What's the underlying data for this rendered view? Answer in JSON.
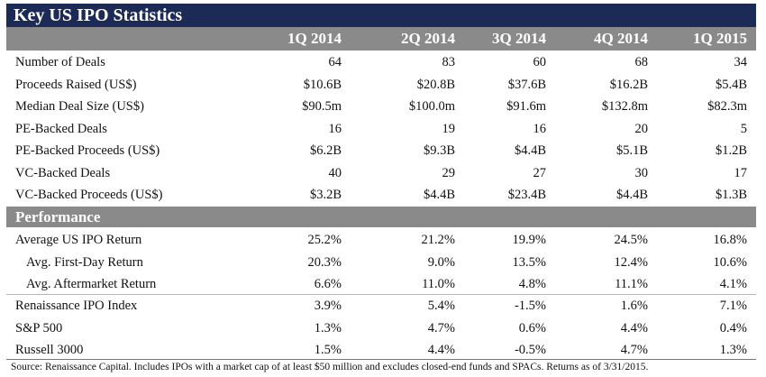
{
  "title": "Key US IPO Statistics",
  "columns": [
    "1Q 2014",
    "2Q 2014",
    "3Q 2014",
    "4Q 2014",
    "1Q 2015"
  ],
  "deal_rows": [
    {
      "label": "Number of Deals",
      "values": [
        "64",
        "83",
        "60",
        "68",
        "34"
      ]
    },
    {
      "label": "Proceeds Raised (US$)",
      "values": [
        "$10.6B",
        "$20.8B",
        "$37.6B",
        "$16.2B",
        "$5.4B"
      ]
    },
    {
      "label": "Median Deal Size (US$)",
      "values": [
        "$90.5m",
        "$100.0m",
        "$91.6m",
        "$132.8m",
        "$82.3m"
      ]
    },
    {
      "label": "PE-Backed Deals",
      "values": [
        "16",
        "19",
        "16",
        "20",
        "5"
      ]
    },
    {
      "label": "PE-Backed Proceeds (US$)",
      "values": [
        "$6.2B",
        "$9.3B",
        "$4.4B",
        "$5.1B",
        "$1.2B"
      ]
    },
    {
      "label": "VC-Backed Deals",
      "values": [
        "40",
        "29",
        "27",
        "30",
        "17"
      ]
    },
    {
      "label": "VC-Backed Proceeds (US$)",
      "values": [
        "$3.2B",
        "$4.4B",
        "$23.4B",
        "$4.4B",
        "$1.3B"
      ]
    }
  ],
  "performance_title": "Performance",
  "perf_rows": [
    {
      "label": "Average US IPO Return",
      "values": [
        "25.2%",
        "21.2%",
        "19.9%",
        "24.5%",
        "16.8%"
      ]
    },
    {
      "label": "Avg. First-Day Return",
      "values": [
        "20.3%",
        "9.0%",
        "13.5%",
        "12.4%",
        "10.6%"
      ]
    },
    {
      "label": "Avg. Aftermarket Return",
      "values": [
        "6.6%",
        "11.0%",
        "4.8%",
        "11.1%",
        "4.1%"
      ]
    }
  ],
  "index_rows": [
    {
      "label": "Renaissance IPO Index",
      "values": [
        "3.9%",
        "5.4%",
        "-1.5%",
        "1.6%",
        "7.1%"
      ]
    },
    {
      "label": "S&P 500",
      "values": [
        "1.3%",
        "4.7%",
        "0.6%",
        "4.4%",
        "0.4%"
      ]
    },
    {
      "label": "Russell 3000",
      "values": [
        "1.5%",
        "4.4%",
        "-0.5%",
        "4.7%",
        "1.3%"
      ]
    }
  ],
  "footnote": "Source: Renaissance Capital. Includes IPOs with a market cap of at least $50 million and excludes closed-end funds and SPACs.  Returns as of 3/31/2015."
}
